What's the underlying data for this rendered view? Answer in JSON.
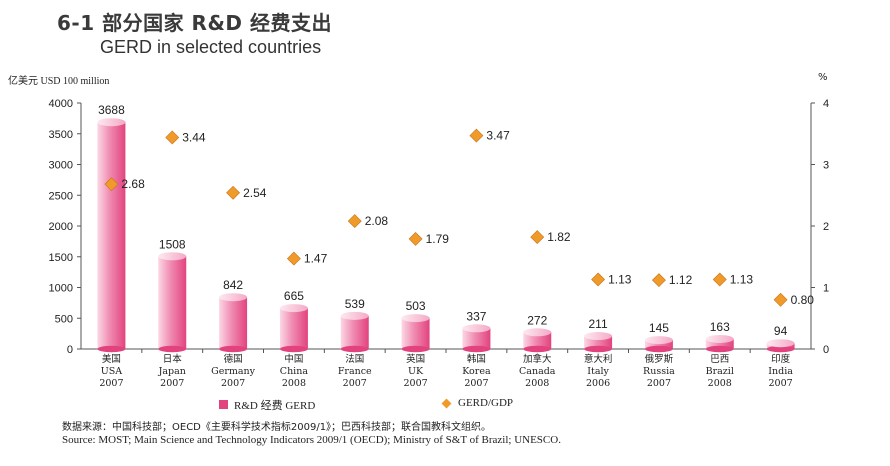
{
  "title": {
    "zh": "6-1 部分国家 R&D 经费支出",
    "en": "GERD in selected countries"
  },
  "axis": {
    "left_label": "亿美元 USD 100 million",
    "right_label": "%"
  },
  "legend": {
    "bar": "R&D 经费 GERD",
    "line": "GERD/GDP"
  },
  "source": {
    "zh": "数据来源：中国科技部；OECD《主要科学技术指标2009/1》；巴西科技部；联合国教科文组织。",
    "en": "Source: MOST; Main Science and Technology Indicators 2009/1 (OECD); Ministry of S&T of Brazil; UNESCO."
  },
  "colors": {
    "bar": "#e2437f",
    "bar_light": "#fbd7e5",
    "diamond": "#f09a2a",
    "axis": "#555555"
  },
  "chart_data": {
    "type": "bar",
    "categories": [
      {
        "zh": "美国",
        "en": "USA",
        "year": "2007"
      },
      {
        "zh": "日本",
        "en": "Japan",
        "year": "2007"
      },
      {
        "zh": "德国",
        "en": "Germany",
        "year": "2007"
      },
      {
        "zh": "中国",
        "en": "China",
        "year": "2008"
      },
      {
        "zh": "法国",
        "en": "France",
        "year": "2007"
      },
      {
        "zh": "英国",
        "en": "UK",
        "year": "2007"
      },
      {
        "zh": "韩国",
        "en": "Korea",
        "year": "2007"
      },
      {
        "zh": "加拿大",
        "en": "Canada",
        "year": "2008"
      },
      {
        "zh": "意大利",
        "en": "Italy",
        "year": "2006"
      },
      {
        "zh": "俄罗斯",
        "en": "Russia",
        "year": "2007"
      },
      {
        "zh": "巴西",
        "en": "Brazil",
        "year": "2008"
      },
      {
        "zh": "印度",
        "en": "India",
        "year": "2007"
      }
    ],
    "series": [
      {
        "name": "R&D 经费 GERD",
        "type": "bar",
        "axis": "left",
        "values": [
          3688,
          1508,
          842,
          665,
          539,
          503,
          337,
          272,
          211,
          145,
          163,
          94
        ],
        "labels": [
          "3688",
          "1508",
          "842",
          "665",
          "539",
          "503",
          "337",
          "272",
          "211",
          "145",
          "163",
          "94"
        ]
      },
      {
        "name": "GERD/GDP",
        "type": "scatter",
        "axis": "right",
        "values": [
          2.68,
          3.44,
          2.54,
          1.47,
          2.08,
          1.79,
          3.47,
          1.82,
          1.13,
          1.12,
          1.13,
          0.8
        ],
        "labels": [
          "2.68",
          "3.44",
          "2.54",
          "1.47",
          "2.08",
          "1.79",
          "3.47",
          "1.82",
          "1.13",
          "1.12",
          "1.13",
          "0.80"
        ]
      }
    ],
    "y_left": {
      "min": 0,
      "max": 4000,
      "ticks": [
        "0",
        "500",
        "1000",
        "1500",
        "2000",
        "2500",
        "3000",
        "3500",
        "4000"
      ]
    },
    "y_right": {
      "min": 0,
      "max": 4,
      "ticks": [
        "0",
        "1",
        "2",
        "3",
        "4"
      ]
    },
    "grid": false,
    "legend_position": "bottom"
  }
}
